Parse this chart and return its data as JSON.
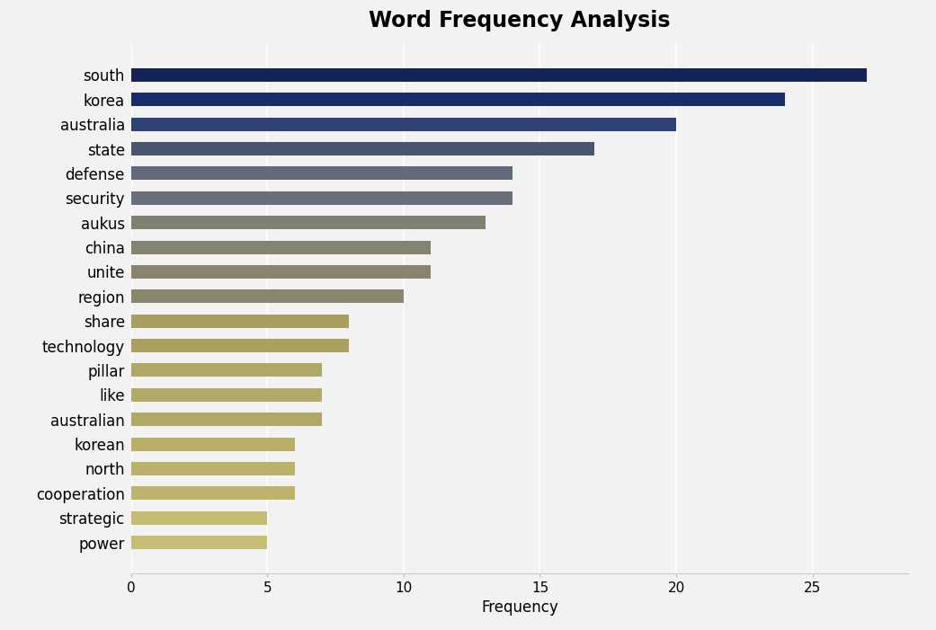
{
  "title": "Word Frequency Analysis",
  "xlabel": "Frequency",
  "categories": [
    "south",
    "korea",
    "australia",
    "state",
    "defense",
    "security",
    "aukus",
    "china",
    "unite",
    "region",
    "share",
    "technology",
    "pillar",
    "like",
    "australian",
    "korean",
    "north",
    "cooperation",
    "strategic",
    "power"
  ],
  "values": [
    27,
    24,
    20,
    17,
    14,
    14,
    13,
    11,
    11,
    10,
    8,
    8,
    7,
    7,
    7,
    6,
    6,
    6,
    5,
    5
  ],
  "bar_colors": [
    "#152456",
    "#1a2d6b",
    "#2e4275",
    "#4a5570",
    "#636b7a",
    "#6a7079",
    "#7d8272",
    "#848270",
    "#888470",
    "#8a866e",
    "#a89e5e",
    "#aaa060",
    "#b0a865",
    "#b2aa67",
    "#b0a865",
    "#b8b068",
    "#bab26a",
    "#bcb46c",
    "#c4bc72",
    "#c6be74"
  ],
  "background_color": "#f2f2f2",
  "title_fontsize": 17,
  "xlim": [
    0,
    28.5
  ],
  "xticks": [
    0,
    5,
    10,
    15,
    20,
    25
  ],
  "bar_height": 0.55,
  "tick_fontsize": 11,
  "label_fontsize": 12
}
